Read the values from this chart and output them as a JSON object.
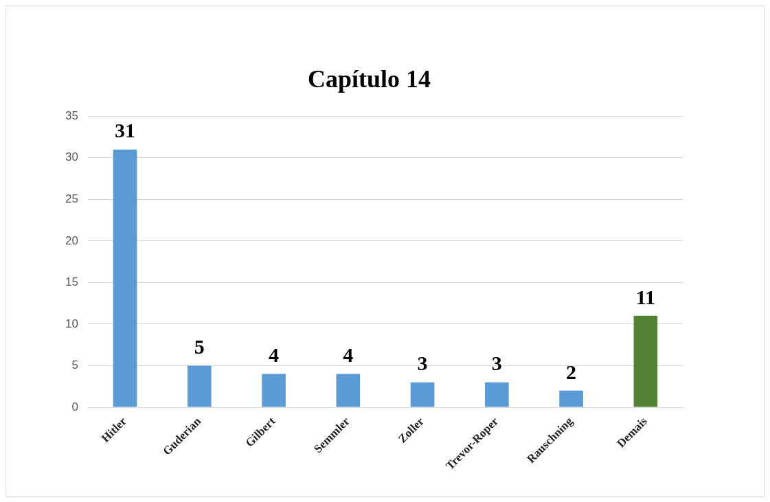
{
  "chart_data": {
    "type": "bar",
    "title": "Capítulo 14",
    "categories": [
      "Hitler",
      "Guderian",
      "Gilbert",
      "Semmler",
      "Zoller",
      "Trevor-Roper",
      "Rauschning",
      "Demais"
    ],
    "values": [
      31,
      5,
      4,
      4,
      3,
      3,
      2,
      11
    ],
    "colors": [
      "#5b9bd5",
      "#5b9bd5",
      "#5b9bd5",
      "#5b9bd5",
      "#5b9bd5",
      "#5b9bd5",
      "#5b9bd5",
      "#548235"
    ],
    "ylim": [
      0,
      35
    ],
    "yticks": [
      0,
      5,
      10,
      15,
      20,
      25,
      30,
      35
    ],
    "grid": "y",
    "legend": false,
    "data_labels": true
  }
}
